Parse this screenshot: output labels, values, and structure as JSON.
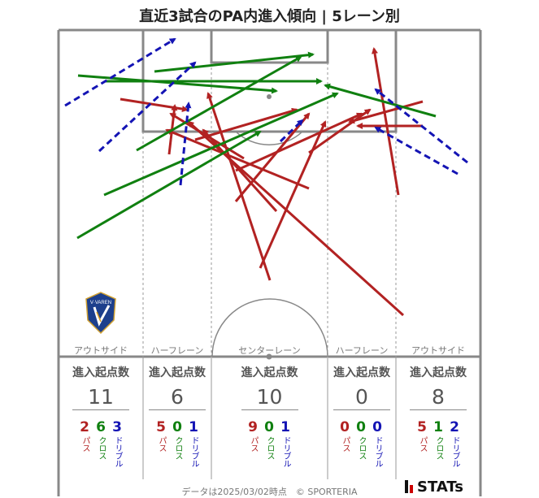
{
  "title": "直近3試合のPA内進入傾向 | 5レーン別",
  "lanes": [
    {
      "label": "アウトサイド",
      "header": "進入起点数",
      "total": "11",
      "pass": "2",
      "cross": "6",
      "dribble": "3"
    },
    {
      "label": "ハーフレーン",
      "header": "進入起点数",
      "total": "6",
      "pass": "5",
      "cross": "0",
      "dribble": "1"
    },
    {
      "label": "センターレーン",
      "header": "進入起点数",
      "total": "10",
      "pass": "9",
      "cross": "0",
      "dribble": "1"
    },
    {
      "label": "ハーフレーン",
      "header": "進入起点数",
      "total": "0",
      "pass": "0",
      "cross": "0",
      "dribble": "0"
    },
    {
      "label": "アウトサイド",
      "header": "進入起点数",
      "total": "8",
      "pass": "5",
      "cross": "1",
      "dribble": "2"
    }
  ],
  "legend_labels": {
    "pass": "パス",
    "cross": "クロス",
    "dribble": "ドリブル"
  },
  "colors": {
    "pass": "#b22222",
    "cross": "#108010",
    "dribble": "#1414b4"
  },
  "badge": {
    "text": "V·VAREN"
  },
  "footer": "データは2025/03/02時点　© SPORTERIA",
  "logo": "STATs"
}
